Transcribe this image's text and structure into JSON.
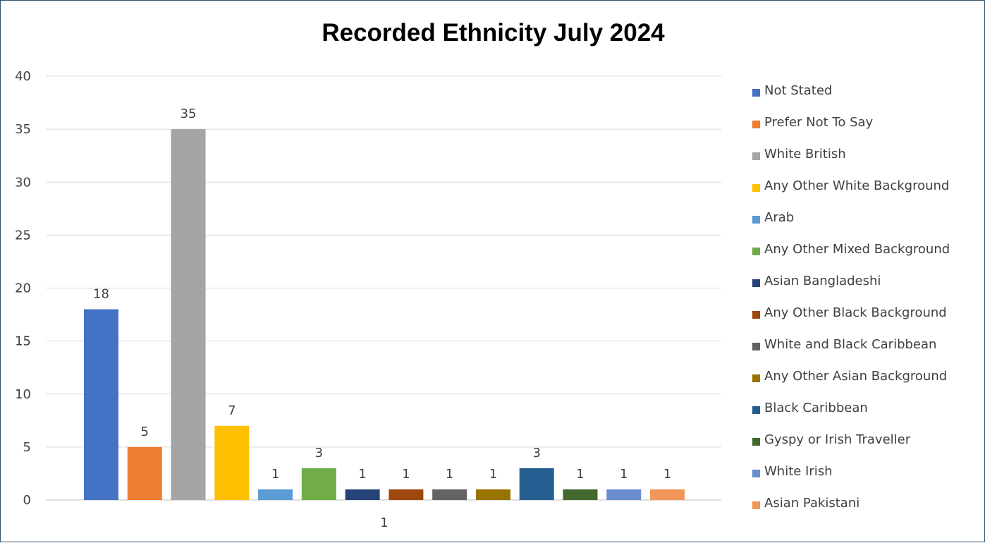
{
  "chart_data": {
    "type": "bar",
    "title": "Recorded Ethnicity July 2024",
    "categories": [
      "1"
    ],
    "ylim": [
      0,
      40
    ],
    "yticks": [
      "0",
      "5",
      "10",
      "15",
      "20",
      "25",
      "30",
      "35",
      "40"
    ],
    "grid": true,
    "legend_position": "right",
    "series": [
      {
        "name": "Not Stated",
        "values": [
          18
        ],
        "color": "#4472C4"
      },
      {
        "name": "Prefer Not To Say",
        "values": [
          5
        ],
        "color": "#ED7D31"
      },
      {
        "name": "White British",
        "values": [
          35
        ],
        "color": "#A5A5A5"
      },
      {
        "name": "Any Other White Background",
        "values": [
          7
        ],
        "color": "#FFC000"
      },
      {
        "name": "Arab",
        "values": [
          1
        ],
        "color": "#5B9BD5"
      },
      {
        "name": "Any Other Mixed Background",
        "values": [
          3
        ],
        "color": "#70AD47"
      },
      {
        "name": "Asian Bangladeshi",
        "values": [
          1
        ],
        "color": "#264478"
      },
      {
        "name": "Any Other Black Background",
        "values": [
          1
        ],
        "color": "#9E480E"
      },
      {
        "name": "White and Black Caribbean",
        "values": [
          1
        ],
        "color": "#636363"
      },
      {
        "name": "Any Other Asian Background",
        "values": [
          1
        ],
        "color": "#997300"
      },
      {
        "name": "Black Caribbean",
        "values": [
          3
        ],
        "color": "#255E91"
      },
      {
        "name": "Gyspy or Irish Traveller",
        "values": [
          1
        ],
        "color": "#43682B"
      },
      {
        "name": "White Irish",
        "values": [
          1
        ],
        "color": "#698ED0"
      },
      {
        "name": "Asian Pakistani",
        "values": [
          1
        ],
        "color": "#F1975A"
      }
    ]
  }
}
